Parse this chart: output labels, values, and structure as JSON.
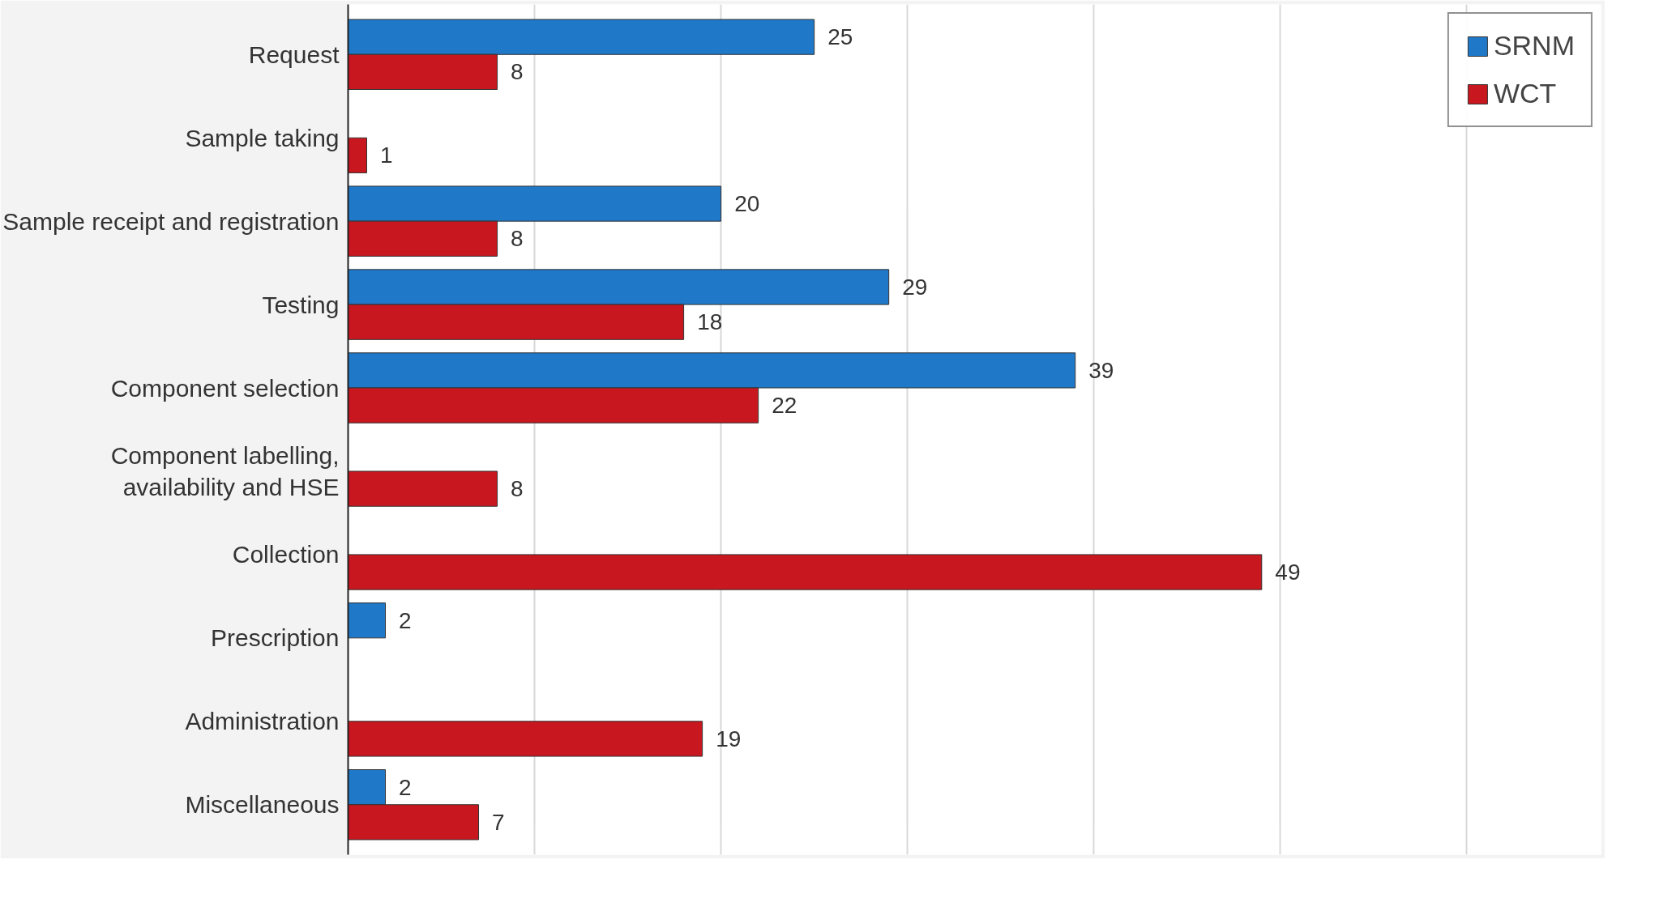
{
  "chart_data": {
    "type": "bar",
    "orientation": "horizontal",
    "categories": [
      "Request",
      "Sample taking",
      "Sample receipt and registration",
      "Testing",
      "Component selection",
      "Component labelling, availability and HSE",
      "Collection",
      "Prescription",
      "Administration",
      "Miscellaneous"
    ],
    "series": [
      {
        "name": "SRNM",
        "color": "#1f78c8",
        "values": [
          25,
          null,
          20,
          29,
          39,
          null,
          null,
          2,
          null,
          2
        ]
      },
      {
        "name": "WCT",
        "color": "#c8171e",
        "values": [
          8,
          1,
          8,
          18,
          22,
          8,
          49,
          null,
          19,
          7
        ]
      }
    ],
    "xlim": [
      0,
      60
    ],
    "xticks": [
      {
        "value": 0,
        "label": null
      },
      {
        "value": 10,
        "label": null
      },
      {
        "value": 20,
        "label": null
      },
      {
        "value": 30,
        "label": null
      },
      {
        "value": 40,
        "label": null
      },
      {
        "value": 50,
        "label": null
      },
      {
        "value": 60,
        "label": null
      }
    ],
    "tick_labels": "y",
    "grid": "x",
    "legend": "top right",
    "data_labels": true
  }
}
